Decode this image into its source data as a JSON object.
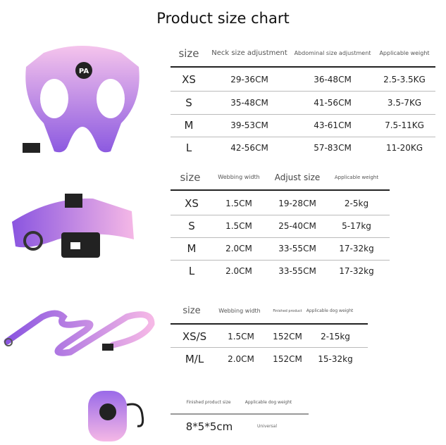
{
  "title": "Product size chart",
  "harness": {
    "headers": [
      "size",
      "Neck size adjustment",
      "Abdominal size adjustment",
      "Applicable weight"
    ],
    "rows": [
      [
        "XS",
        "29-36CM",
        "36-48CM",
        "2.5-3.5KG"
      ],
      [
        "S",
        "35-48CM",
        "41-56CM",
        "3.5-7KG"
      ],
      [
        "M",
        "39-53CM",
        "43-61CM",
        "7.5-11KG"
      ],
      [
        "L",
        "42-56CM",
        "57-83CM",
        "11-20KG"
      ]
    ]
  },
  "collar": {
    "headers": [
      "size",
      "Webbing width",
      "Adjust size",
      "Applicable weight"
    ],
    "rows": [
      [
        "XS",
        "1.5CM",
        "19-28CM",
        "2-5kg"
      ],
      [
        "S",
        "1.5CM",
        "25-40CM",
        "5-17kg"
      ],
      [
        "M",
        "2.0CM",
        "33-55CM",
        "17-32kg"
      ],
      [
        "L",
        "2.0CM",
        "33-55CM",
        "17-32kg"
      ]
    ]
  },
  "leash": {
    "headers": [
      "size",
      "Webbing width",
      "Finished product",
      "Applicable dog weight"
    ],
    "rows": [
      [
        "XS/S",
        "1.5CM",
        "152CM",
        "2-15kg"
      ],
      [
        "M/L",
        "2.0CM",
        "152CM",
        "15-32kg"
      ]
    ]
  },
  "bag": {
    "headers": [
      "Finished product size",
      "Applicable dog weight"
    ],
    "rows": [
      [
        "8*5*5cm",
        "Universal"
      ]
    ]
  },
  "logo": "PA",
  "colors": {
    "pink": "#f2b6e4",
    "purple": "#8a55e0"
  }
}
